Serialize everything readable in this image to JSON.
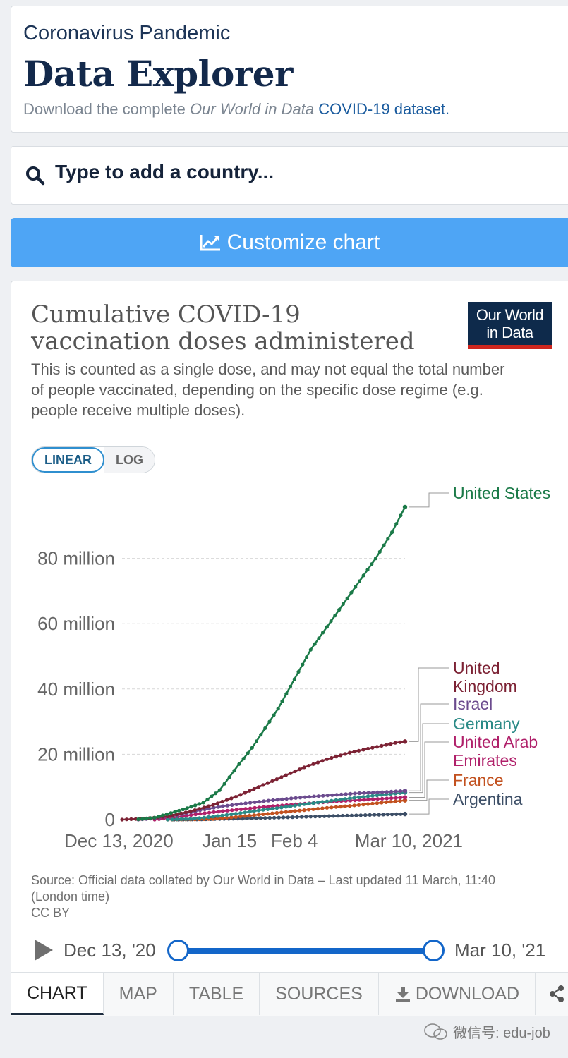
{
  "header": {
    "supertitle": "Coronavirus Pandemic",
    "title": "Data Explorer",
    "download_prefix": "Download the complete ",
    "download_italic": "Our World in Data",
    "download_link": "COVID-19 dataset."
  },
  "search": {
    "placeholder": "Type to add a country..."
  },
  "customize": {
    "label": "Customize chart"
  },
  "chart": {
    "title": "Cumulative COVID-19 vaccination doses administered",
    "subtitle": "This is counted as a single dose, and may not equal the total number of people vaccinated, depending on the specific dose regime (e.g. people receive multiple doses).",
    "logo_line1": "Our World",
    "logo_line2": "in Data",
    "scale_linear": "LINEAR",
    "scale_log": "LOG",
    "source": "Source: Official data collated by Our World in Data – Last updated 11 March, 11:40 (London time)",
    "license": "CC BY"
  },
  "chart_data": {
    "type": "line",
    "title": "Cumulative COVID-19 vaccination doses administered",
    "ylim": [
      0,
      100
    ],
    "y_unit": "million",
    "x_range_days": [
      0,
      87
    ],
    "y_ticks": [
      {
        "value": 0,
        "label": "0"
      },
      {
        "value": 20,
        "label": "20 million"
      },
      {
        "value": 40,
        "label": "40 million"
      },
      {
        "value": 60,
        "label": "60 million"
      },
      {
        "value": 80,
        "label": "80 million"
      }
    ],
    "x_ticks": [
      {
        "day": 0,
        "label": "Dec 13, 2020"
      },
      {
        "day": 33,
        "label": "Jan 15"
      },
      {
        "day": 53,
        "label": "Feb 4"
      },
      {
        "day": 87,
        "label": "Mar 10, 2021"
      }
    ],
    "series": [
      {
        "name": "United States",
        "label_lines": [
          "United States"
        ],
        "color": "#1b7a48",
        "points": [
          [
            5,
            0.1
          ],
          [
            10,
            0.6
          ],
          [
            15,
            2.0
          ],
          [
            20,
            3.5
          ],
          [
            25,
            5.2
          ],
          [
            30,
            9
          ],
          [
            33,
            13
          ],
          [
            36,
            17
          ],
          [
            40,
            22
          ],
          [
            44,
            28
          ],
          [
            48,
            34
          ],
          [
            53,
            43
          ],
          [
            58,
            52
          ],
          [
            63,
            59
          ],
          [
            68,
            66
          ],
          [
            73,
            73
          ],
          [
            78,
            80
          ],
          [
            83,
            88
          ],
          [
            87,
            95.7
          ]
        ]
      },
      {
        "name": "United Kingdom",
        "label_lines": [
          "United",
          "Kingdom"
        ],
        "color": "#7c2234",
        "points": [
          [
            0,
            0
          ],
          [
            7,
            0.3
          ],
          [
            14,
            1.0
          ],
          [
            21,
            2.5
          ],
          [
            28,
            4.5
          ],
          [
            35,
            7
          ],
          [
            42,
            10
          ],
          [
            49,
            13
          ],
          [
            56,
            16
          ],
          [
            63,
            18.5
          ],
          [
            70,
            20.5
          ],
          [
            77,
            22
          ],
          [
            84,
            23.5
          ],
          [
            87,
            23.9
          ]
        ]
      },
      {
        "name": "Israel",
        "label_lines": [
          "Israel"
        ],
        "color": "#6b4b8e",
        "points": [
          [
            5,
            0
          ],
          [
            10,
            0.4
          ],
          [
            17,
            1.4
          ],
          [
            24,
            2.9
          ],
          [
            31,
            4.1
          ],
          [
            38,
            5.0
          ],
          [
            45,
            5.8
          ],
          [
            52,
            6.5
          ],
          [
            59,
            7.1
          ],
          [
            66,
            7.6
          ],
          [
            73,
            8.1
          ],
          [
            80,
            8.4
          ],
          [
            87,
            8.8
          ]
        ]
      },
      {
        "name": "Germany",
        "label_lines": [
          "Germany"
        ],
        "color": "#2a8a86",
        "points": [
          [
            14,
            0
          ],
          [
            21,
            0.2
          ],
          [
            28,
            0.9
          ],
          [
            35,
            1.8
          ],
          [
            42,
            2.8
          ],
          [
            49,
            3.7
          ],
          [
            56,
            4.7
          ],
          [
            63,
            5.6
          ],
          [
            70,
            6.5
          ],
          [
            77,
            7.3
          ],
          [
            84,
            8.0
          ],
          [
            87,
            8.3
          ]
        ]
      },
      {
        "name": "United Arab Emirates",
        "label_lines": [
          "United Arab",
          "Emirates"
        ],
        "color": "#b0206a",
        "points": [
          [
            10,
            0
          ],
          [
            17,
            0.8
          ],
          [
            24,
            1.8
          ],
          [
            31,
            2.6
          ],
          [
            38,
            3.3
          ],
          [
            45,
            4.0
          ],
          [
            52,
            4.6
          ],
          [
            59,
            5.1
          ],
          [
            66,
            5.6
          ],
          [
            73,
            6.0
          ],
          [
            80,
            6.4
          ],
          [
            87,
            6.8
          ]
        ]
      },
      {
        "name": "France",
        "label_lines": [
          "France"
        ],
        "color": "#c2511f",
        "points": [
          [
            14,
            0
          ],
          [
            21,
            0.05
          ],
          [
            28,
            0.2
          ],
          [
            35,
            0.8
          ],
          [
            42,
            1.5
          ],
          [
            49,
            2.2
          ],
          [
            56,
            2.9
          ],
          [
            63,
            3.6
          ],
          [
            70,
            4.2
          ],
          [
            77,
            4.9
          ],
          [
            84,
            5.6
          ],
          [
            87,
            5.9
          ]
        ]
      },
      {
        "name": "Argentina",
        "label_lines": [
          "Argentina"
        ],
        "color": "#3c4e66",
        "points": [
          [
            16,
            0
          ],
          [
            23,
            0.05
          ],
          [
            30,
            0.2
          ],
          [
            37,
            0.3
          ],
          [
            44,
            0.5
          ],
          [
            51,
            0.7
          ],
          [
            58,
            0.9
          ],
          [
            65,
            1.1
          ],
          [
            72,
            1.3
          ],
          [
            79,
            1.5
          ],
          [
            87,
            1.7
          ]
        ]
      }
    ]
  },
  "timeline": {
    "start_label": "Dec 13, '20",
    "end_label": "Mar 10, '21",
    "start_fraction": 0,
    "end_fraction": 1
  },
  "tabs": [
    {
      "label": "CHART"
    },
    {
      "label": "MAP"
    },
    {
      "label": "TABLE"
    },
    {
      "label": "SOURCES"
    },
    {
      "label": "DOWNLOAD"
    }
  ],
  "watermark": {
    "text": "微信号: edu-job"
  }
}
